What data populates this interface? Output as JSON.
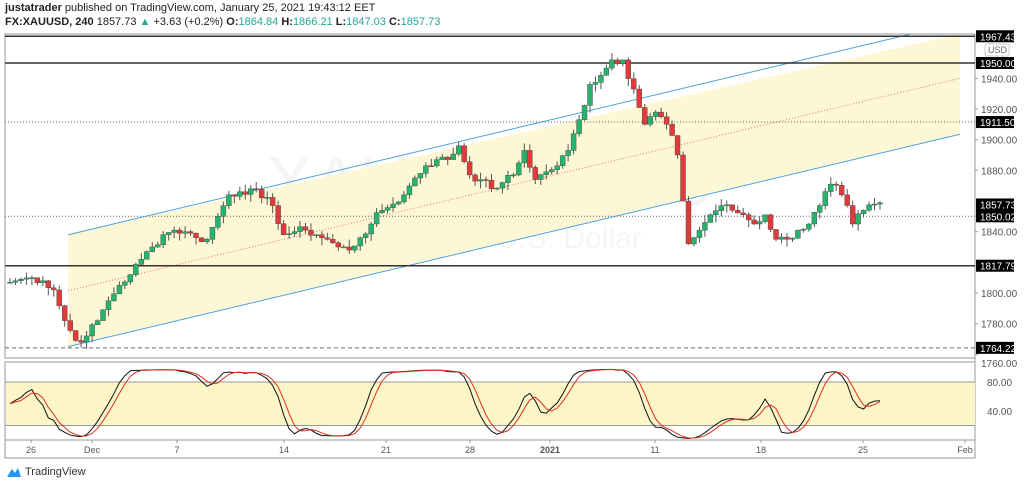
{
  "header": {
    "publisher": "justatrader",
    "published_text": "published on TradingView.com, January 25, 2021 19:43:12 EET",
    "symbol": "FX:XAUUSD, 240",
    "last": "1857.73",
    "change": "+3.63 (+0.2%)",
    "o_label": "O:",
    "o": "1864.84",
    "h_label": "H:",
    "h": "1866.21",
    "l_label": "L:",
    "l": "1847.03",
    "c_label": "C:",
    "c": "1857.73"
  },
  "watermark": {
    "symbol": "XAUUSD, 240",
    "description": "Gold Spot / U.S. Dollar"
  },
  "brand": "TradingView",
  "colors": {
    "up": "#26b36b",
    "down": "#e03a3a",
    "channel": "#4aa3df",
    "channel_fill": "#fdf7d6",
    "stoch_k": "#111111",
    "stoch_d": "#e0301e",
    "stoch_band": "#fbf5c8"
  },
  "chart_data": [
    {
      "type": "candlestick",
      "currency_label": "USD",
      "ylim": [
        1758,
        1968
      ],
      "y_ticks": [
        "1940.00",
        "1920.00",
        "1900.00",
        "1880.00",
        "1840.00",
        "1800.00",
        "1780.00",
        "1760.00"
      ],
      "y_tick_values": [
        1940,
        1920,
        1900,
        1880,
        1840,
        1800,
        1780,
        1760
      ],
      "x_ticks": [
        "26",
        "Dec",
        "7",
        "14",
        "21",
        "28",
        "2021",
        "11",
        "18",
        "25",
        "Feb"
      ],
      "approx_closes": [
        1807,
        1809,
        1810,
        1808,
        1802,
        1782,
        1769,
        1772,
        1782,
        1795,
        1805,
        1812,
        1822,
        1830,
        1838,
        1841,
        1840,
        1836,
        1835,
        1850,
        1864,
        1866,
        1868,
        1862,
        1857,
        1838,
        1840,
        1841,
        1838,
        1835,
        1830,
        1828,
        1836,
        1845,
        1854,
        1858,
        1864,
        1875,
        1883,
        1887,
        1887,
        1896,
        1877,
        1874,
        1868,
        1872,
        1877,
        1893,
        1874,
        1879,
        1883,
        1893,
        1913,
        1936,
        1942,
        1952,
        1952,
        1933,
        1910,
        1918,
        1910,
        1890,
        1832,
        1841,
        1851,
        1857,
        1854,
        1851,
        1845,
        1851,
        1835,
        1835,
        1841,
        1845,
        1857,
        1871,
        1864,
        1845,
        1854,
        1858
      ],
      "price_levels": [
        {
          "label": "1967.43",
          "value": 1967.43,
          "style": "solid"
        },
        {
          "label": "1950.00",
          "value": 1950.0,
          "style": "solid"
        },
        {
          "label": "1911.50",
          "value": 1911.5,
          "style": "dotted"
        },
        {
          "label": "1857.73",
          "value": 1857.73,
          "style": "none"
        },
        {
          "label": "1850.02",
          "value": 1850.02,
          "style": "dotted"
        },
        {
          "label": "1817.79",
          "value": 1817.79,
          "style": "solid"
        },
        {
          "label": "1764.22",
          "value": 1764.22,
          "style": "dashed"
        }
      ],
      "channel": {
        "upper_start": 1838,
        "lower_start": 1765,
        "slope_per_candle": 1.7
      }
    },
    {
      "type": "line",
      "indicator": "stochastic",
      "ylim": [
        0,
        100
      ],
      "y_ticks": [
        "80.00",
        "40.00"
      ],
      "y_tick_values": [
        80,
        40
      ],
      "band": [
        20,
        80
      ]
    }
  ]
}
